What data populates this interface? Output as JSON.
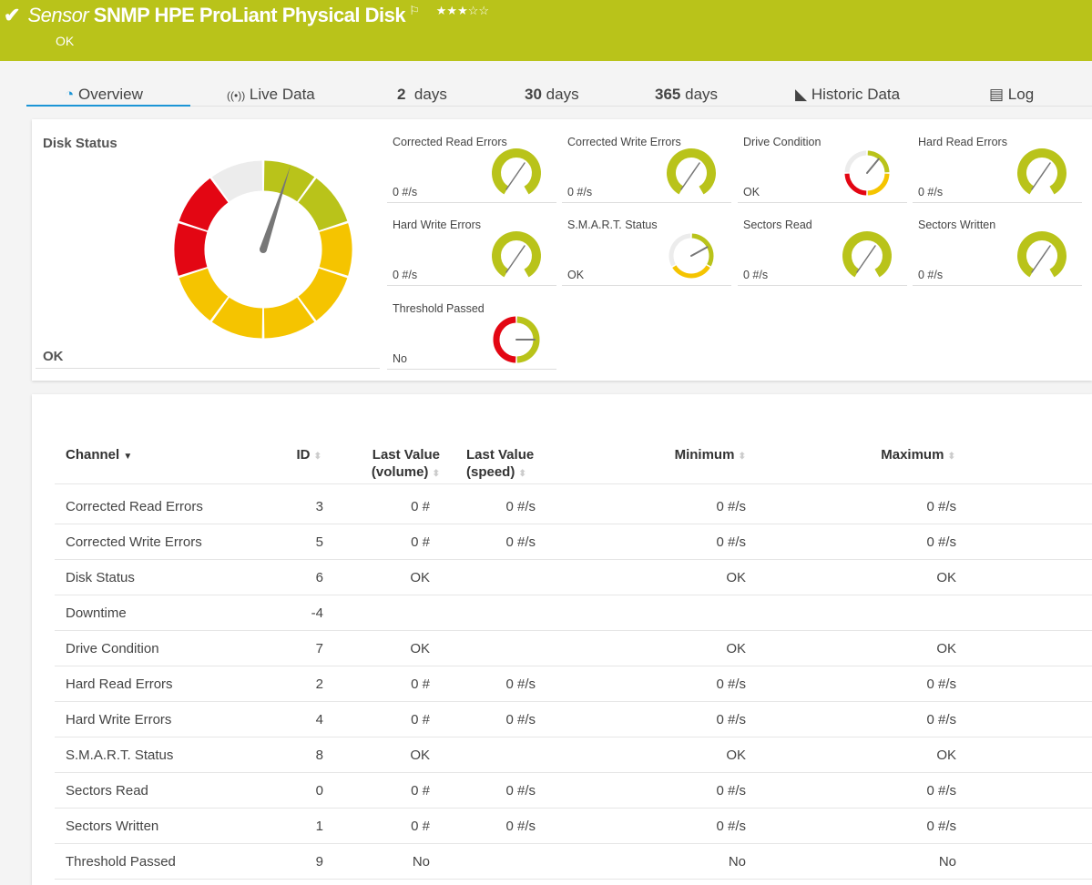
{
  "header": {
    "type_label": "Sensor",
    "title": "SNMP HPE ProLiant Physical Disk",
    "status": "OK",
    "priority_stars": 3,
    "priority_max": 5,
    "stars_text": "★★★☆☆",
    "color": "#b9c31a"
  },
  "tabs": [
    {
      "label": "Overview",
      "icon": "gauge-icon",
      "active": true
    },
    {
      "label": "Live Data",
      "icon": "broadcast-icon"
    },
    {
      "num": "2",
      "label": "days"
    },
    {
      "num": "30",
      "label": "days"
    },
    {
      "num": "365",
      "label": "days"
    },
    {
      "label": "Historic Data",
      "icon": "area-chart-icon"
    },
    {
      "label": "Log",
      "icon": "list-icon"
    }
  ],
  "colors": {
    "green": "#b9c31a",
    "yellow": "#f5c400",
    "red": "#e30613",
    "gray": "#ececec",
    "needle": "#777777"
  },
  "main_gauge": {
    "label": "Disk Status",
    "value": "OK",
    "segments": [
      "green",
      "green",
      "yellow",
      "yellow",
      "yellow",
      "yellow",
      "yellow",
      "red",
      "red",
      "gray"
    ],
    "needle_fraction": 0.05
  },
  "gauges": [
    {
      "label": "Corrected Read Errors",
      "value": "0 #/s",
      "kind": "numeric"
    },
    {
      "label": "Corrected Write Errors",
      "value": "0 #/s",
      "kind": "numeric"
    },
    {
      "label": "Drive Condition",
      "value": "OK",
      "kind": "lookup",
      "segments": [
        "green",
        "yellow",
        "red",
        "gray"
      ],
      "needle_fraction": 0.11
    },
    {
      "label": "Hard Read Errors",
      "value": "0 #/s",
      "kind": "numeric"
    },
    {
      "label": "Hard Write Errors",
      "value": "0 #/s",
      "kind": "numeric"
    },
    {
      "label": "S.M.A.R.T. Status",
      "value": "OK",
      "kind": "lookup",
      "segments": [
        "green",
        "yellow",
        "gray"
      ],
      "needle_fraction": 0.17
    },
    {
      "label": "Sectors Read",
      "value": "0 #/s",
      "kind": "numeric"
    },
    {
      "label": "Sectors Written",
      "value": "0 #/s",
      "kind": "numeric"
    },
    {
      "label": "Threshold Passed",
      "value": "No",
      "kind": "lookup",
      "segments": [
        "green",
        "red"
      ],
      "needle_fraction": 0.25
    }
  ],
  "table": {
    "headers": {
      "channel": "Channel",
      "id": "ID",
      "last_volume_1": "Last Value",
      "last_volume_2": "(volume)",
      "last_speed_1": "Last Value",
      "last_speed_2": "(speed)",
      "minimum": "Minimum",
      "maximum": "Maximum"
    },
    "rows": [
      {
        "channel": "Corrected Read Errors",
        "id": "3",
        "volume": "0 #",
        "speed": "0 #/s",
        "min": "0 #/s",
        "max": "0 #/s"
      },
      {
        "channel": "Corrected Write Errors",
        "id": "5",
        "volume": "0 #",
        "speed": "0 #/s",
        "min": "0 #/s",
        "max": "0 #/s"
      },
      {
        "channel": "Disk Status",
        "id": "6",
        "volume": "OK",
        "speed": "",
        "min": "OK",
        "max": "OK"
      },
      {
        "channel": "Downtime",
        "id": "-4",
        "volume": "",
        "speed": "",
        "min": "",
        "max": ""
      },
      {
        "channel": "Drive Condition",
        "id": "7",
        "volume": "OK",
        "speed": "",
        "min": "OK",
        "max": "OK"
      },
      {
        "channel": "Hard Read Errors",
        "id": "2",
        "volume": "0 #",
        "speed": "0 #/s",
        "min": "0 #/s",
        "max": "0 #/s"
      },
      {
        "channel": "Hard Write Errors",
        "id": "4",
        "volume": "0 #",
        "speed": "0 #/s",
        "min": "0 #/s",
        "max": "0 #/s"
      },
      {
        "channel": "S.M.A.R.T. Status",
        "id": "8",
        "volume": "OK",
        "speed": "",
        "min": "OK",
        "max": "OK"
      },
      {
        "channel": "Sectors Read",
        "id": "0",
        "volume": "0 #",
        "speed": "0 #/s",
        "min": "0 #/s",
        "max": "0 #/s"
      },
      {
        "channel": "Sectors Written",
        "id": "1",
        "volume": "0 #",
        "speed": "0 #/s",
        "min": "0 #/s",
        "max": "0 #/s"
      },
      {
        "channel": "Threshold Passed",
        "id": "9",
        "volume": "No",
        "speed": "",
        "min": "No",
        "max": "No"
      }
    ]
  }
}
